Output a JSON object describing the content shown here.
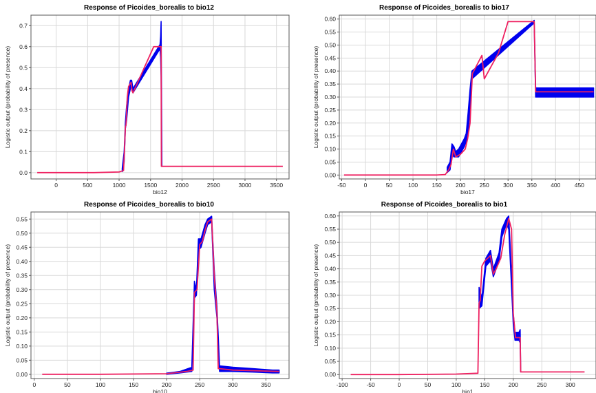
{
  "chart_data": [
    {
      "type": "line",
      "title": "Response of Picoides_borealis to bio12",
      "xlabel": "bio12",
      "ylabel": "Logistic output (probability of presence)",
      "xlim": [
        -400,
        3700
      ],
      "ylim": [
        -0.03,
        0.75
      ],
      "xticks": [
        0,
        500,
        1000,
        1500,
        2000,
        2500,
        3000,
        3500
      ],
      "yticks": [
        0.0,
        0.1,
        0.2,
        0.3,
        0.4,
        0.5,
        0.6,
        0.7
      ],
      "ytick_decimals": 1,
      "grid": true,
      "series": [
        {
          "role": "spread",
          "color": "#0000ee",
          "x": [
            1050,
            1080,
            1100,
            1120,
            1150,
            1180,
            1200,
            1220,
            1650,
            1660,
            1668,
            1680
          ],
          "low": [
            0.005,
            0.05,
            0.21,
            0.25,
            0.36,
            0.4,
            0.41,
            0.38,
            0.59,
            0.55,
            0.46,
            0.03
          ],
          "high": [
            0.02,
            0.1,
            0.24,
            0.32,
            0.4,
            0.44,
            0.44,
            0.4,
            0.61,
            0.65,
            0.72,
            0.03
          ]
        },
        {
          "role": "mean",
          "color": "#ee2060",
          "x": [
            -300,
            600,
            1000,
            1070,
            1085,
            1100,
            1110,
            1130,
            1150,
            1170,
            1190,
            1205,
            1220,
            1550,
            1640,
            1668,
            1672,
            1680,
            3600
          ],
          "y": [
            0.0,
            0.0,
            0.003,
            0.01,
            0.1,
            0.22,
            0.225,
            0.36,
            0.41,
            0.42,
            0.43,
            0.39,
            0.38,
            0.6,
            0.6,
            0.6,
            0.03,
            0.03,
            0.03
          ]
        }
      ]
    },
    {
      "type": "line",
      "title": "Response of Picoides_borealis to bio17",
      "xlabel": "bio17",
      "ylabel": "Logistic output (probability of presence)",
      "xlim": [
        -55,
        485
      ],
      "ylim": [
        -0.015,
        0.615
      ],
      "xticks": [
        -50,
        0,
        50,
        100,
        150,
        200,
        250,
        300,
        350,
        400,
        450
      ],
      "yticks": [
        0.0,
        0.05,
        0.1,
        0.15,
        0.2,
        0.25,
        0.3,
        0.35,
        0.4,
        0.45,
        0.5,
        0.55,
        0.6
      ],
      "ytick_decimals": 2,
      "grid": true,
      "series": [
        {
          "role": "spread",
          "color": "#0000ee",
          "x": [
            172,
            178,
            182,
            186,
            190,
            196,
            202,
            208,
            212,
            216,
            220,
            224,
            355,
            358,
            359,
            480
          ],
          "low": [
            0.01,
            0.02,
            0.08,
            0.07,
            0.07,
            0.07,
            0.09,
            0.11,
            0.13,
            0.17,
            0.25,
            0.37,
            0.585,
            0.3,
            0.3,
            0.3
          ],
          "high": [
            0.03,
            0.05,
            0.12,
            0.11,
            0.09,
            0.1,
            0.12,
            0.14,
            0.16,
            0.24,
            0.33,
            0.4,
            0.595,
            0.335,
            0.335,
            0.335
          ]
        },
        {
          "role": "mean",
          "color": "#ee2060",
          "x": [
            -45,
            60,
            150,
            168,
            175,
            180,
            185,
            190,
            200,
            210,
            215,
            220,
            225,
            245,
            250,
            280,
            300,
            355,
            358,
            480
          ],
          "y": [
            0.0,
            0.0,
            0.0,
            0.002,
            0.02,
            0.04,
            0.1,
            0.07,
            0.08,
            0.1,
            0.14,
            0.2,
            0.39,
            0.46,
            0.37,
            0.47,
            0.59,
            0.59,
            0.32,
            0.32
          ]
        }
      ]
    },
    {
      "type": "line",
      "title": "Response of Picoides_borealis to bio10",
      "xlabel": "bio10",
      "ylabel": "Logistic output (probability of presence)",
      "xlim": [
        -5,
        385
      ],
      "ylim": [
        -0.015,
        0.575
      ],
      "xticks": [
        0,
        50,
        100,
        150,
        200,
        250,
        300,
        350
      ],
      "yticks": [
        0.0,
        0.05,
        0.1,
        0.15,
        0.2,
        0.25,
        0.3,
        0.35,
        0.4,
        0.45,
        0.5,
        0.55
      ],
      "ytick_decimals": 2,
      "grid": true,
      "series": [
        {
          "role": "spread",
          "color": "#0000ee",
          "x": [
            200,
            220,
            238,
            242,
            245,
            248,
            252,
            258,
            262,
            268,
            272,
            276,
            280,
            300,
            330,
            360,
            370
          ],
          "low": [
            0.0,
            0.005,
            0.01,
            0.27,
            0.28,
            0.44,
            0.45,
            0.5,
            0.53,
            0.54,
            0.3,
            0.2,
            0.01,
            0.01,
            0.008,
            0.005,
            0.005
          ],
          "high": [
            0.004,
            0.01,
            0.025,
            0.33,
            0.3,
            0.48,
            0.48,
            0.53,
            0.55,
            0.56,
            0.37,
            0.24,
            0.03,
            0.025,
            0.02,
            0.015,
            0.015
          ]
        },
        {
          "role": "mean",
          "color": "#ee2060",
          "x": [
            12,
            100,
            200,
            230,
            240,
            242,
            246,
            250,
            254,
            258,
            262,
            268,
            270,
            272,
            276,
            278,
            280,
            300,
            370
          ],
          "y": [
            0.0,
            0.0,
            0.002,
            0.01,
            0.015,
            0.29,
            0.3,
            0.46,
            0.47,
            0.51,
            0.54,
            0.55,
            0.45,
            0.35,
            0.22,
            0.02,
            0.02,
            0.015,
            0.01
          ]
        }
      ]
    },
    {
      "type": "line",
      "title": "Response of Picoides_borealis to bio1",
      "xlabel": "bio1",
      "ylabel": "Logistic output (probability of presence)",
      "xlim": [
        -105,
        345
      ],
      "ylim": [
        -0.015,
        0.615
      ],
      "xticks": [
        -100,
        -50,
        0,
        50,
        100,
        150,
        200,
        250,
        300
      ],
      "yticks": [
        0.0,
        0.05,
        0.1,
        0.15,
        0.2,
        0.25,
        0.3,
        0.35,
        0.4,
        0.45,
        0.5,
        0.55,
        0.6
      ],
      "ytick_decimals": 2,
      "grid": true,
      "series": [
        {
          "role": "spread",
          "color": "#0000ee",
          "x": [
            140,
            145,
            152,
            160,
            165,
            175,
            180,
            188,
            192,
            198,
            200,
            203,
            205,
            210,
            212,
            213
          ],
          "low": [
            0.25,
            0.26,
            0.41,
            0.43,
            0.37,
            0.43,
            0.52,
            0.57,
            0.55,
            0.28,
            0.19,
            0.13,
            0.13,
            0.13,
            0.12,
            0.01
          ],
          "high": [
            0.33,
            0.29,
            0.44,
            0.47,
            0.4,
            0.46,
            0.55,
            0.59,
            0.6,
            0.33,
            0.23,
            0.16,
            0.16,
            0.16,
            0.17,
            0.01
          ]
        },
        {
          "role": "mean",
          "color": "#ee2060",
          "x": [
            -85,
            0,
            100,
            138,
            140,
            142,
            145,
            150,
            160,
            165,
            170,
            178,
            185,
            192,
            197,
            200,
            204,
            212,
            213,
            325
          ],
          "y": [
            0.0,
            0.0,
            0.002,
            0.005,
            0.27,
            0.28,
            0.41,
            0.43,
            0.45,
            0.38,
            0.4,
            0.44,
            0.53,
            0.59,
            0.55,
            0.23,
            0.14,
            0.14,
            0.01,
            0.01
          ]
        }
      ]
    }
  ]
}
